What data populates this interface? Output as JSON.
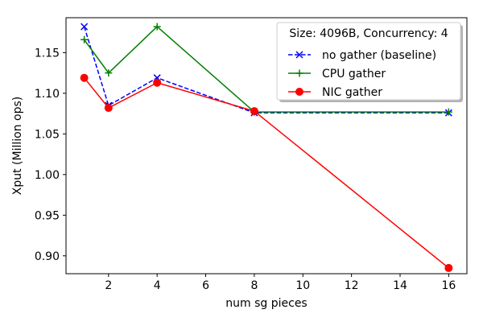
{
  "chart_data": {
    "type": "line",
    "title": "",
    "xlabel": "num sg pieces",
    "ylabel": "Xput (Million ops)",
    "xlim": [
      0.25,
      16.75
    ],
    "ylim": [
      0.878,
      1.193
    ],
    "xticks": [
      2,
      4,
      6,
      8,
      10,
      12,
      14,
      16
    ],
    "xtick_labels": [
      "2",
      "4",
      "6",
      "8",
      "10",
      "12",
      "14",
      "16"
    ],
    "yticks": [
      0.9,
      0.95,
      1.0,
      1.05,
      1.1,
      1.15
    ],
    "ytick_labels": [
      "0.90",
      "0.95",
      "1.00",
      "1.05",
      "1.10",
      "1.15"
    ],
    "grid": false,
    "legend": {
      "title": "Size: 4096B, Concurrency: 4",
      "position": "top-right"
    },
    "series": [
      {
        "name": "no gather (baseline)",
        "color": "#0000ff",
        "line_style": "dashed",
        "marker": "x",
        "x": [
          1,
          2,
          4,
          8,
          16
        ],
        "y": [
          1.182,
          1.085,
          1.119,
          1.076,
          1.076
        ]
      },
      {
        "name": "CPU gather",
        "color": "#008000",
        "line_style": "solid",
        "marker": "plus",
        "x": [
          1,
          2,
          4,
          8,
          16
        ],
        "y": [
          1.166,
          1.125,
          1.182,
          1.077,
          1.077
        ]
      },
      {
        "name": "NIC gather",
        "color": "#ff0000",
        "line_style": "solid",
        "marker": "circle",
        "x": [
          1,
          2,
          4,
          8,
          16
        ],
        "y": [
          1.119,
          1.082,
          1.113,
          1.078,
          0.885
        ]
      }
    ]
  }
}
